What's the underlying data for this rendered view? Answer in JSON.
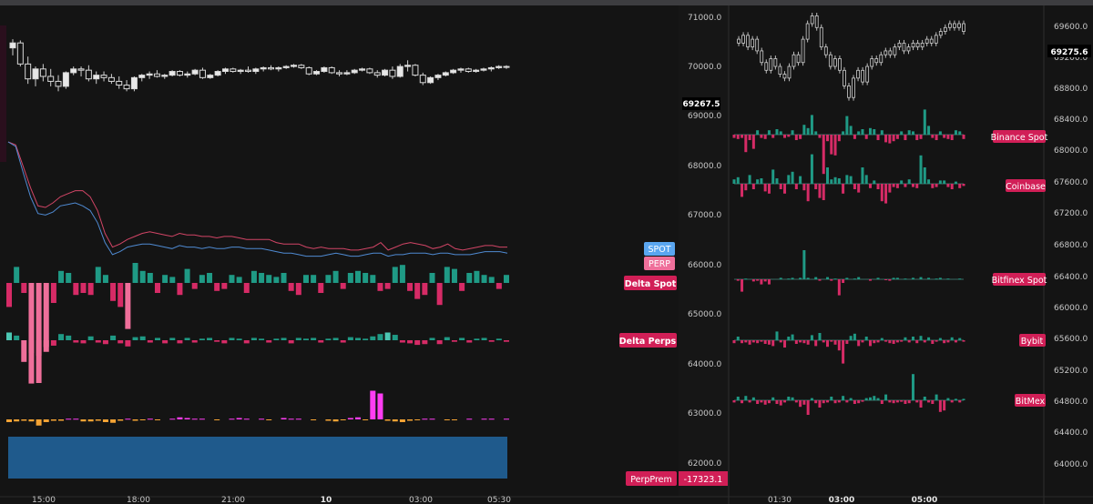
{
  "colors": {
    "background": "#141414",
    "spot_line": "#4f8ad2",
    "perp_line": "#d24566",
    "positive": "#1f9a85",
    "negative": "#d62b66",
    "pos_light": "#4cc7b3",
    "neg_light": "#ef6f9a",
    "premium_pos": "#ff3df3",
    "premium_neg": "#f4a334",
    "fill_area": "#1f5a8c",
    "label_bg": "#d11f57",
    "spot_tag": "#5aa6f0"
  },
  "left_panel": {
    "x_ticks": [
      "15:00",
      "18:00",
      "21:00",
      "10",
      "03:00",
      "05:30"
    ],
    "legend_spot": "SPOT",
    "legend_perp": "PERP",
    "label_delta_spot": "Delta Spot",
    "label_delta_perps": "Delta Perps",
    "label_perp_prem": "PerpPrem",
    "perp_prem_value": "-17323.1"
  },
  "middle_axis": {
    "ticks": [
      "71000.0",
      "70000.0",
      "69000.0",
      "68000.0",
      "67000.0",
      "66000.0",
      "65000.0",
      "64000.0",
      "63000.0",
      "62000.0"
    ],
    "current_price": "69267.5"
  },
  "right_panel": {
    "x_ticks": [
      "01:30",
      "03:00",
      "05:00"
    ],
    "price_tag": "69275.6",
    "exchanges": [
      "Binance Spot",
      "Coinbase",
      "Bitfinex Spot",
      "Bybit",
      "BitMex"
    ]
  },
  "right_axis": {
    "ticks": [
      "69600.0",
      "69200.0",
      "68800.0",
      "68400.0",
      "68000.0",
      "67600.0",
      "67200.0",
      "66800.0",
      "66400.0",
      "66000.0",
      "65600.0",
      "65200.0",
      "64800.0",
      "64400.0",
      "64000.0"
    ]
  },
  "chart_data": [
    {
      "type": "candlestick",
      "title": "",
      "x_labels": [
        "15:00",
        "18:00",
        "21:00",
        "10",
        "03:00",
        "05:30"
      ],
      "y_axis": [
        "71000.0",
        "70000.0",
        "69000.0",
        "68000.0",
        "67000.0",
        "66000.0",
        "65000.0",
        "64000.0",
        "63000.0",
        "62000.0"
      ],
      "last_price": 69267.5,
      "ohlc": [
        [
          70050,
          70400,
          69750,
          70250
        ],
        [
          70250,
          70350,
          69300,
          69400
        ],
        [
          69400,
          69700,
          68600,
          68800
        ],
        [
          68800,
          69300,
          68500,
          69200
        ],
        [
          69200,
          69400,
          68700,
          68900
        ],
        [
          68900,
          69200,
          68500,
          68700
        ],
        [
          68700,
          68950,
          68300,
          68500
        ],
        [
          68500,
          69100,
          68400,
          69050
        ],
        [
          69050,
          69300,
          68950,
          69200
        ],
        [
          69200,
          69300,
          68900,
          69150
        ],
        [
          69150,
          69350,
          68700,
          68800
        ],
        [
          68800,
          69100,
          68600,
          68950
        ],
        [
          68950,
          69100,
          68700,
          68850
        ],
        [
          68850,
          69000,
          68600,
          68700
        ],
        [
          68700,
          68900,
          68400,
          68550
        ],
        [
          68550,
          68750,
          68300,
          68400
        ],
        [
          68400,
          68900,
          68300,
          68850
        ],
        [
          68850,
          69000,
          68700,
          68950
        ],
        [
          68950,
          69100,
          68800,
          69000
        ],
        [
          69000,
          69150,
          68850,
          68900
        ],
        [
          68900,
          69000,
          68800,
          68950
        ],
        [
          68950,
          69150,
          68900,
          69100
        ],
        [
          69100,
          69150,
          68900,
          68950
        ],
        [
          68950,
          69100,
          68850,
          69000
        ],
        [
          69000,
          69200,
          68950,
          69150
        ],
        [
          69150,
          69250,
          68800,
          68850
        ],
        [
          68850,
          69000,
          68800,
          68950
        ],
        [
          68950,
          69150,
          68900,
          69100
        ],
        [
          69100,
          69250,
          69000,
          69200
        ],
        [
          69200,
          69250,
          69050,
          69100
        ],
        [
          69100,
          69200,
          69000,
          69150
        ],
        [
          69150,
          69300,
          69050,
          69100
        ],
        [
          69100,
          69250,
          69000,
          69200
        ],
        [
          69200,
          69300,
          69100,
          69250
        ],
        [
          69250,
          69350,
          69150,
          69200
        ],
        [
          69200,
          69300,
          69100,
          69250
        ],
        [
          69250,
          69350,
          69200,
          69300
        ],
        [
          69300,
          69400,
          69250,
          69350
        ],
        [
          69350,
          69400,
          69200,
          69250
        ],
        [
          69250,
          69300,
          68950,
          69000
        ],
        [
          69000,
          69150,
          68950,
          69100
        ],
        [
          69100,
          69300,
          69050,
          69250
        ],
        [
          69250,
          69300,
          69000,
          69050
        ],
        [
          69050,
          69150,
          68900,
          69000
        ],
        [
          69000,
          69150,
          68950,
          69050
        ],
        [
          69050,
          69200,
          69000,
          69150
        ],
        [
          69150,
          69250,
          69100,
          69200
        ],
        [
          69200,
          69250,
          69000,
          69050
        ],
        [
          69050,
          69150,
          68850,
          68950
        ],
        [
          68950,
          69200,
          68900,
          69150
        ],
        [
          69150,
          69300,
          68800,
          68900
        ],
        [
          68900,
          69400,
          68850,
          69300
        ],
        [
          69300,
          69550,
          69100,
          69350
        ],
        [
          69350,
          69400,
          68900,
          68950
        ],
        [
          68950,
          69050,
          68550,
          68650
        ],
        [
          68650,
          68900,
          68600,
          68850
        ],
        [
          68850,
          69000,
          68750,
          68950
        ],
        [
          68950,
          69100,
          68900,
          69050
        ],
        [
          69050,
          69200,
          69000,
          69150
        ],
        [
          69150,
          69250,
          69050,
          69200
        ],
        [
          69200,
          69250,
          69050,
          69100
        ],
        [
          69100,
          69200,
          69050,
          69150
        ],
        [
          69150,
          69250,
          69100,
          69200
        ],
        [
          69200,
          69300,
          69100,
          69250
        ],
        [
          69250,
          69350,
          69200,
          69300
        ],
        [
          69300,
          69350,
          69200,
          69267.5
        ]
      ]
    },
    {
      "type": "line",
      "series": [
        {
          "name": "SPOT",
          "values": [
            100,
            97,
            80,
            64,
            53,
            52,
            54,
            58,
            59,
            60,
            58,
            55,
            47,
            34,
            26,
            28,
            31,
            32,
            33,
            33,
            32,
            31,
            30,
            32,
            31,
            31,
            30,
            31,
            30,
            30,
            31,
            31,
            30,
            30,
            30,
            29,
            28,
            27,
            27,
            26,
            25,
            25,
            25,
            26,
            27,
            26,
            25,
            25,
            26,
            27,
            27,
            25,
            26,
            26,
            27,
            27,
            27,
            26,
            27,
            27,
            26,
            26,
            26,
            27,
            28,
            28,
            28,
            27
          ]
        },
        {
          "name": "PERP",
          "values": [
            100,
            98,
            84,
            70,
            58,
            57,
            60,
            64,
            66,
            68,
            68,
            64,
            55,
            40,
            31,
            33,
            36,
            38,
            40,
            41,
            40,
            39,
            38,
            40,
            39,
            39,
            38,
            38,
            37,
            38,
            38,
            37,
            36,
            36,
            36,
            36,
            34,
            33,
            33,
            33,
            31,
            30,
            31,
            30,
            30,
            30,
            29,
            29,
            30,
            31,
            34,
            29,
            31,
            33,
            34,
            33,
            32,
            30,
            31,
            33,
            30,
            29,
            30,
            31,
            32,
            32,
            31,
            31
          ]
        }
      ]
    },
    {
      "type": "bar",
      "name": "Delta Spot",
      "values": [
        -1.2,
        0.8,
        -0.5,
        -3.5,
        -5.0,
        -3.2,
        -1.0,
        0.6,
        0.5,
        -0.6,
        -0.5,
        -0.6,
        0.8,
        0.4,
        -0.9,
        -1.2,
        -2.3,
        1.0,
        0.6,
        0.5,
        -0.5,
        0.4,
        0.3,
        -0.6,
        0.7,
        -0.3,
        0.4,
        0.5,
        -0.4,
        -0.3,
        0.4,
        0.3,
        -0.5,
        0.6,
        0.5,
        0.4,
        0.3,
        0.5,
        -0.4,
        -0.6,
        0.4,
        0.4,
        -0.5,
        0.4,
        0.6,
        -0.3,
        0.5,
        0.6,
        0.5,
        0.4,
        -0.4,
        -0.3,
        0.8,
        0.9,
        -0.4,
        -0.8,
        -0.6,
        0.5,
        -1.1,
        0.8,
        0.7,
        -0.4,
        0.5,
        0.6,
        0.4,
        0.3,
        -0.3,
        0.4
      ]
    },
    {
      "type": "bar",
      "name": "Delta Perps",
      "values": [
        1.0,
        0.6,
        -2.8,
        -5.6,
        -2.0,
        -1.5,
        -0.7,
        0.8,
        0.6,
        -0.3,
        -0.4,
        0.5,
        -0.3,
        -0.5,
        0.6,
        -0.4,
        -0.8,
        0.4,
        0.5,
        -0.3,
        0.3,
        -0.4,
        0.3,
        -0.4,
        0.3,
        -0.3,
        0.2,
        0.3,
        -0.2,
        -0.4,
        0.3,
        0.2,
        -0.4,
        0.3,
        0.2,
        -0.3,
        0.2,
        0.3,
        -0.4,
        0.3,
        0.2,
        0.3,
        -0.3,
        0.2,
        0.3,
        -0.3,
        0.4,
        0.3,
        0.2,
        0.5,
        0.8,
        1.0,
        0.7,
        -0.3,
        -0.4,
        -0.6,
        -0.5,
        0.3,
        -0.5,
        0.4,
        -0.2,
        0.3,
        -0.3,
        0.2,
        0.3,
        -0.2,
        0.2,
        -0.2
      ]
    },
    {
      "type": "bar",
      "name": "PerpPrem",
      "values": [
        -0.4,
        -0.3,
        -0.2,
        -0.3,
        -0.9,
        -0.4,
        -0.2,
        -0.2,
        0.1,
        0.1,
        -0.3,
        -0.3,
        -0.2,
        -0.4,
        -0.5,
        -0.2,
        0.1,
        -0.2,
        -0.1,
        0.1,
        -0.1,
        0,
        0.1,
        0.3,
        0.2,
        0.1,
        0.1,
        0,
        -0.1,
        0,
        0.1,
        0.2,
        0.1,
        0,
        0.1,
        -0.1,
        0,
        0.2,
        0.1,
        0.1,
        0,
        -0.1,
        0,
        -0.2,
        -0.3,
        -0.1,
        0.2,
        0.3,
        -0.1,
        4.2,
        3.8,
        -0.2,
        -0.3,
        -0.4,
        -0.2,
        -0.1,
        0.1,
        0.1,
        0,
        -0.1,
        -0.1,
        0,
        0.1,
        0,
        0.1,
        0.1,
        0,
        0.1
      ]
    },
    {
      "type": "line",
      "title": "",
      "x_labels": [
        "01:30",
        "03:00",
        "05:00"
      ],
      "last_price": 69275.6,
      "values": [
        69400,
        69350,
        69450,
        69300,
        69400,
        69250,
        69100,
        69000,
        69150,
        69050,
        68950,
        68900,
        69050,
        69200,
        69100,
        69400,
        69600,
        69700,
        69550,
        69300,
        69200,
        69050,
        69150,
        69000,
        68800,
        68650,
        68900,
        69000,
        68850,
        69050,
        69150,
        69100,
        69200,
        69250,
        69200,
        69300,
        69350,
        69250,
        69300,
        69350,
        69300,
        69350,
        69400,
        69350,
        69450,
        69500,
        69550,
        69600,
        69550,
        69600,
        69500
      ]
    },
    {
      "type": "bar",
      "name": "Binance Spot",
      "values": [
        -0.3,
        -0.4,
        -0.3,
        -1.6,
        -0.5,
        -1.3,
        0.4,
        -0.3,
        -0.4,
        0.4,
        -0.3,
        0.5,
        0.3,
        -0.3,
        -0.2,
        0.4,
        -0.5,
        -0.4,
        0.9,
        0.6,
        1.8,
        0.3,
        -0.3,
        -3.6,
        -0.6,
        -1.8,
        -1.9,
        -0.6,
        0.3,
        1.7,
        0.8,
        -0.4,
        0.3,
        0.5,
        -0.4,
        0.6,
        0.5,
        -0.5,
        0.4,
        -0.7,
        -0.8,
        -0.6,
        -0.4,
        0.3,
        -0.5,
        0.4,
        0.3,
        -0.5,
        -0.4,
        2.3,
        0.8,
        -0.3,
        -0.5,
        0.3,
        -0.3,
        -0.4,
        -0.5,
        0.4,
        0.3,
        -0.4
      ]
    },
    {
      "type": "bar",
      "name": "Coinbase",
      "values": [
        0.4,
        0.6,
        -1.2,
        -0.6,
        0.8,
        -0.5,
        0.4,
        0.5,
        -0.7,
        -0.9,
        1.3,
        0.5,
        -0.5,
        -0.9,
        0.8,
        1.1,
        -0.5,
        0.7,
        -0.6,
        -1.6,
        2.7,
        -0.5,
        -1.3,
        -1.5,
        1.5,
        0.4,
        0.6,
        0.5,
        -0.9,
        0.8,
        0.7,
        -0.5,
        -0.8,
        1.5,
        0.8,
        -0.4,
        0.3,
        -0.5,
        -1.6,
        -1.8,
        -0.8,
        -0.3,
        -0.4,
        0.3,
        -0.3,
        0.4,
        -0.3,
        -0.4,
        2.6,
        1.5,
        0.4,
        -0.4,
        -0.3,
        0.3,
        0.3,
        -0.3,
        -0.5,
        0.2,
        -0.4,
        -0.2
      ]
    },
    {
      "type": "bar",
      "name": "Bitfinex Spot",
      "values": [
        0,
        -0.2,
        -1.7,
        0.1,
        0,
        -0.3,
        -0.2,
        -0.7,
        -0.3,
        -0.7,
        0,
        0,
        0.2,
        0,
        0.1,
        0.2,
        0,
        0.2,
        4.0,
        0.2,
        0,
        0.3,
        -0.2,
        0,
        0.3,
        -0.2,
        0.1,
        -2.2,
        -0.5,
        0.2,
        0,
        0.1,
        0.3,
        0,
        0,
        -0.2,
        0,
        0.2,
        0,
        -0.1,
        -0.2,
        0.2,
        0.2,
        0,
        0.1,
        0,
        0.2,
        0,
        0.3,
        0,
        0.2,
        0,
        0.1,
        0.2,
        0,
        0.1,
        0,
        0,
        0.1,
        0
      ]
    },
    {
      "type": "bar",
      "name": "Bybit",
      "values": [
        -0.4,
        0.5,
        -0.4,
        -0.3,
        -0.6,
        -0.3,
        -0.4,
        -0.2,
        -0.5,
        -0.6,
        -0.8,
        1.2,
        -0.3,
        -1.0,
        0.5,
        0.8,
        -0.5,
        -0.3,
        -0.4,
        -0.6,
        0.7,
        -0.8,
        1.0,
        -0.3,
        -0.9,
        -0.2,
        -0.6,
        -1.4,
        -3.2,
        -0.5,
        0.6,
        0.9,
        -0.8,
        -0.3,
        0.5,
        -0.8,
        -0.4,
        -0.3,
        0.3,
        -0.2,
        -0.4,
        -0.5,
        -0.3,
        -0.2,
        0.4,
        -0.3,
        0.5,
        -0.4,
        0.6,
        -0.3,
        0.4,
        -0.5,
        -0.2,
        0.3,
        -0.4,
        -0.3,
        0.4,
        -0.3,
        0.3,
        -0.2
      ]
    },
    {
      "type": "bar",
      "name": "BitMex",
      "values": [
        -0.3,
        0.5,
        -0.4,
        0.6,
        -0.3,
        0.4,
        -0.5,
        -0.3,
        -0.6,
        -0.4,
        0.4,
        -0.5,
        -0.7,
        -0.3,
        0.5,
        0.4,
        -0.3,
        -0.9,
        -0.6,
        -2.0,
        0.3,
        -0.4,
        -1.0,
        -0.4,
        -0.3,
        0.5,
        -0.4,
        -0.3,
        0.6,
        -0.3,
        0.3,
        -0.5,
        -0.4,
        -0.2,
        0.3,
        0.4,
        0.6,
        0.3,
        -0.5,
        0.8,
        -0.3,
        -0.4,
        -0.3,
        -0.2,
        -0.5,
        -0.4,
        3.6,
        -0.3,
        -1.0,
        0.5,
        -0.3,
        -0.5,
        0.8,
        -1.6,
        -1.4,
        0.3,
        -0.3,
        0.2,
        -0.3,
        0.2
      ]
    }
  ]
}
